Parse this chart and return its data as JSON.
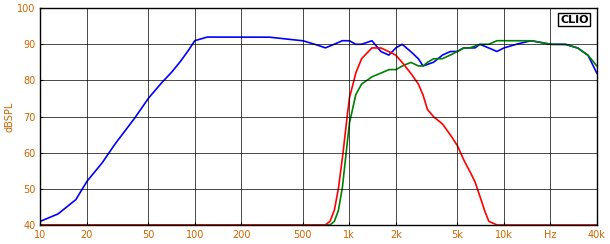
{
  "title": "CLIO",
  "ylabel": "dBSPL",
  "xlabel": "Hz",
  "xlim": [
    10,
    40000
  ],
  "ylim": [
    40,
    100
  ],
  "yticks": [
    40,
    50,
    60,
    70,
    80,
    90,
    100
  ],
  "xticks_log": [
    10,
    20,
    50,
    100,
    200,
    500,
    1000,
    2000,
    5000,
    10000,
    20000,
    40000
  ],
  "xtick_labels": [
    "10",
    "20",
    "50",
    "100",
    "200",
    "500",
    "1k",
    "2k",
    "5k",
    "10k",
    "Hz",
    "40k"
  ],
  "grid_color": "#000000",
  "bg_color": "#ffffff",
  "line_blue_color": "#0000ff",
  "line_red_color": "#ff0000",
  "line_green_color": "#008000",
  "label_color": "#cc6600",
  "title_color": "#000000",
  "blue_freqs": [
    10,
    13,
    17,
    20,
    25,
    30,
    40,
    50,
    60,
    70,
    80,
    90,
    100,
    120,
    150,
    200,
    300,
    500,
    600,
    700,
    800,
    900,
    1000,
    1100,
    1200,
    1400,
    1600,
    1800,
    2000,
    2200,
    2500,
    2800,
    3000,
    3500,
    4000,
    4500,
    5000,
    5500,
    6000,
    6500,
    7000,
    8000,
    9000,
    10000,
    12000,
    15000,
    20000,
    25000,
    30000,
    35000,
    40000
  ],
  "blue_dbs": [
    41,
    43,
    47,
    52,
    57,
    62,
    69,
    75,
    79,
    82,
    85,
    88,
    91,
    92,
    92,
    92,
    92,
    91,
    90,
    89,
    90,
    91,
    91,
    90,
    90,
    91,
    88,
    87,
    89,
    90,
    88,
    86,
    84,
    85,
    87,
    88,
    88,
    89,
    89,
    89,
    90,
    89,
    88,
    89,
    90,
    91,
    90,
    90,
    89,
    87,
    82
  ],
  "green_freqs": [
    700,
    750,
    800,
    850,
    900,
    950,
    1000,
    1100,
    1200,
    1400,
    1600,
    1800,
    2000,
    2200,
    2500,
    2800,
    3000,
    3200,
    3500,
    4000,
    4500,
    5000,
    5500,
    6000,
    7000,
    8000,
    9000,
    10000,
    12000,
    15000,
    20000,
    25000,
    30000,
    35000,
    40000
  ],
  "green_dbs": [
    40,
    40,
    41,
    44,
    50,
    59,
    68,
    76,
    79,
    81,
    82,
    83,
    83,
    84,
    85,
    84,
    84,
    85,
    86,
    86,
    87,
    88,
    89,
    89,
    90,
    90,
    91,
    91,
    91,
    91,
    90,
    90,
    89,
    87,
    84
  ],
  "red_freqs": [
    600,
    650,
    700,
    750,
    800,
    850,
    900,
    950,
    1000,
    1100,
    1200,
    1400,
    1600,
    1800,
    2000,
    2200,
    2500,
    2800,
    3000,
    3200,
    3500,
    4000,
    4500,
    5000,
    5500,
    6000,
    6500,
    7000,
    7500,
    8000,
    9000,
    10000,
    12000,
    40000
  ],
  "red_dbs": [
    40,
    40,
    40,
    41,
    44,
    50,
    58,
    67,
    75,
    82,
    86,
    89,
    89,
    88,
    87,
    85,
    82,
    79,
    76,
    72,
    70,
    68,
    65,
    62,
    58,
    55,
    52,
    48,
    44,
    41,
    40,
    40,
    40,
    40
  ]
}
